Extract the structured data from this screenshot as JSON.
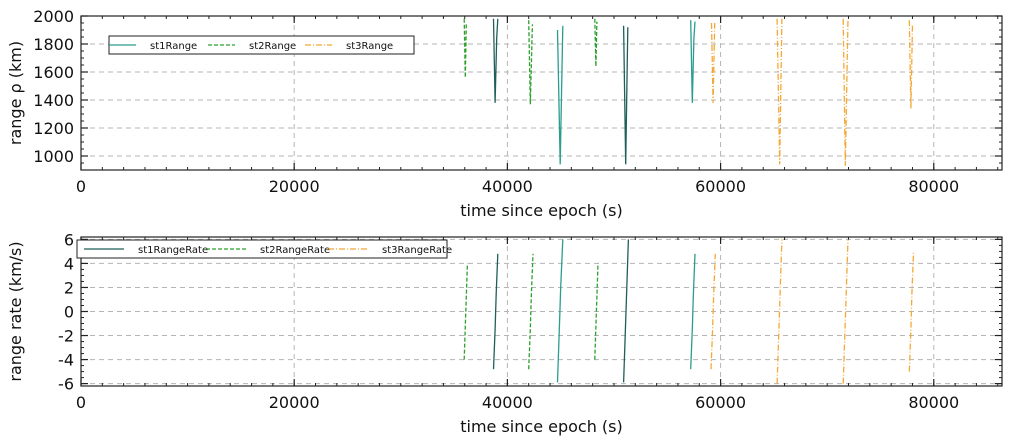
{
  "colors": {
    "series1": "#2a9d8f",
    "series1_dark": "#1f5f5b",
    "series2": "#2ca02c",
    "series3": "#f4a836",
    "grid": "#b5b5b5",
    "axis": "#222222"
  },
  "chart_data": [
    {
      "type": "line",
      "xlabel": "time since epoch (s)",
      "ylabel": "range ρ (km)",
      "xlim": [
        0,
        86400
      ],
      "ylim": [
        900,
        2000
      ],
      "xticks": [
        0,
        20000,
        40000,
        60000,
        80000
      ],
      "yticks": [
        1000,
        1200,
        1400,
        1600,
        1800,
        2000
      ],
      "grid": true,
      "legend_position": "top-left",
      "series": [
        {
          "name": "st1Range",
          "style": "solid",
          "segments": [
            [
              [
                38700,
                1980
              ],
              [
                38850,
                1380
              ],
              [
                39000,
                1840
              ],
              [
                39100,
                1980
              ]
            ],
            [
              [
                44700,
                1900
              ],
              [
                44950,
                940
              ],
              [
                45200,
                1930
              ]
            ],
            [
              [
                50900,
                1930
              ],
              [
                51100,
                940
              ],
              [
                51300,
                1920
              ]
            ],
            [
              [
                57200,
                1970
              ],
              [
                57350,
                1380
              ],
              [
                57500,
                1840
              ],
              [
                57600,
                1960
              ]
            ]
          ]
        },
        {
          "name": "st2Range",
          "style": "dashed",
          "segments": [
            [
              [
                35950,
                1980
              ],
              [
                36050,
                1560
              ],
              [
                36150,
                1950
              ]
            ],
            [
              [
                42000,
                1970
              ],
              [
                42150,
                1370
              ],
              [
                42350,
                1940
              ]
            ],
            [
              [
                48200,
                1980
              ],
              [
                48300,
                1640
              ],
              [
                48400,
                1960
              ]
            ]
          ]
        },
        {
          "name": "st3Range",
          "style": "dashdot",
          "segments": [
            [
              [
                59150,
                1950
              ],
              [
                59300,
                1380
              ],
              [
                59450,
                1950
              ]
            ],
            [
              [
                65300,
                1980
              ],
              [
                65550,
                940
              ],
              [
                65750,
                1980
              ]
            ],
            [
              [
                71500,
                1980
              ],
              [
                71700,
                930
              ],
              [
                71950,
                1980
              ]
            ],
            [
              [
                77700,
                1970
              ],
              [
                77850,
                1340
              ],
              [
                78000,
                1940
              ]
            ]
          ]
        }
      ]
    },
    {
      "type": "line",
      "xlabel": "time since epoch (s)",
      "ylabel": "range rate (km/s)",
      "xlim": [
        0,
        86400
      ],
      "ylim": [
        -6.2,
        6.2
      ],
      "xticks": [
        0,
        20000,
        40000,
        60000,
        80000
      ],
      "yticks": [
        -6,
        -4,
        -2,
        0,
        2,
        4,
        6
      ],
      "grid": true,
      "legend_position": "top-left",
      "series": [
        {
          "name": "st1RangeRate",
          "style": "solid",
          "segments": [
            [
              [
                38700,
                -4.8
              ],
              [
                38850,
                -1.5
              ],
              [
                38950,
                1.5
              ],
              [
                39100,
                4.8
              ]
            ],
            [
              [
                44700,
                -5.9
              ],
              [
                44850,
                -2.0
              ],
              [
                45000,
                2.0
              ],
              [
                45200,
                6.0
              ]
            ],
            [
              [
                50900,
                -5.9
              ],
              [
                51050,
                -2.0
              ],
              [
                51200,
                2.0
              ],
              [
                51350,
                6.0
              ]
            ],
            [
              [
                57200,
                -4.8
              ],
              [
                57350,
                -1.5
              ],
              [
                57450,
                1.5
              ],
              [
                57600,
                4.8
              ]
            ]
          ]
        },
        {
          "name": "st2RangeRate",
          "style": "dashed",
          "segments": [
            [
              [
                35950,
                -4.0
              ],
              [
                36050,
                -1.2
              ],
              [
                36150,
                1.2
              ],
              [
                36250,
                4.0
              ]
            ],
            [
              [
                42000,
                -4.8
              ],
              [
                42150,
                -1.5
              ],
              [
                42250,
                1.5
              ],
              [
                42400,
                4.8
              ]
            ],
            [
              [
                48200,
                -4.0
              ],
              [
                48300,
                -1.2
              ],
              [
                48400,
                1.2
              ],
              [
                48500,
                4.0
              ]
            ]
          ]
        },
        {
          "name": "st3RangeRate",
          "style": "dashdot",
          "segments": [
            [
              [
                59100,
                -4.8
              ],
              [
                59250,
                -1.5
              ],
              [
                59350,
                1.5
              ],
              [
                59500,
                4.8
              ]
            ],
            [
              [
                65300,
                -6.0
              ],
              [
                65450,
                -2.0
              ],
              [
                65600,
                2.0
              ],
              [
                65750,
                6.0
              ]
            ],
            [
              [
                71500,
                -6.0
              ],
              [
                71650,
                -2.0
              ],
              [
                71800,
                2.0
              ],
              [
                71950,
                6.0
              ]
            ],
            [
              [
                77700,
                -5.0
              ],
              [
                77850,
                -1.5
              ],
              [
                77950,
                1.5
              ],
              [
                78100,
                4.9
              ]
            ]
          ]
        }
      ]
    }
  ]
}
